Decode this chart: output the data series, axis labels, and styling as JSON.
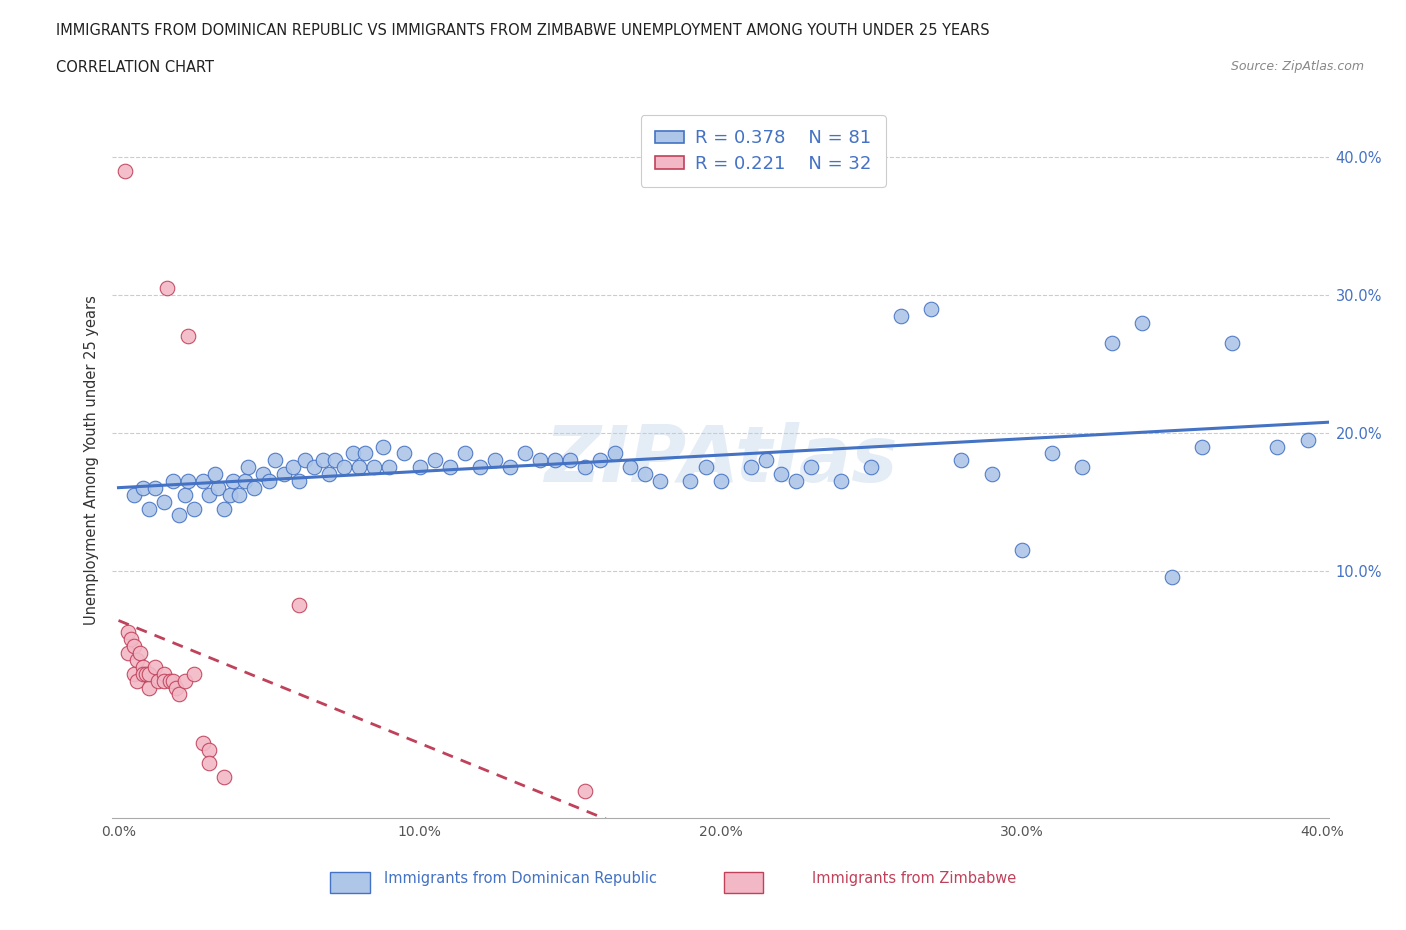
{
  "title_line1": "IMMIGRANTS FROM DOMINICAN REPUBLIC VS IMMIGRANTS FROM ZIMBABWE UNEMPLOYMENT AMONG YOUTH UNDER 25 YEARS",
  "title_line2": "CORRELATION CHART",
  "source_text": "Source: ZipAtlas.com",
  "ylabel": "Unemployment Among Youth under 25 years",
  "xlim": [
    -0.002,
    0.402
  ],
  "ylim": [
    -0.08,
    0.44
  ],
  "xtick_labels": [
    "0.0%",
    "",
    "10.0%",
    "",
    "20.0%",
    "",
    "30.0%",
    "",
    "40.0%"
  ],
  "xtick_vals": [
    0.0,
    0.05,
    0.1,
    0.15,
    0.2,
    0.25,
    0.3,
    0.35,
    0.4
  ],
  "ytick_labels": [
    "10.0%",
    "20.0%",
    "30.0%",
    "40.0%"
  ],
  "ytick_vals": [
    0.1,
    0.2,
    0.3,
    0.4
  ],
  "legend_label1": "Immigrants from Dominican Republic",
  "legend_label2": "Immigrants from Zimbabwe",
  "legend_R1": "R = 0.378",
  "legend_N1": "N = 81",
  "legend_R2": "R = 0.221",
  "legend_N2": "N = 32",
  "color_blue": "#aec6e8",
  "color_pink": "#f2b8c6",
  "line_blue": "#4472c4",
  "line_pink": "#c0415a",
  "blue_x": [
    0.005,
    0.008,
    0.01,
    0.012,
    0.015,
    0.018,
    0.02,
    0.022,
    0.023,
    0.025,
    0.028,
    0.03,
    0.032,
    0.033,
    0.035,
    0.037,
    0.038,
    0.04,
    0.042,
    0.043,
    0.045,
    0.048,
    0.05,
    0.052,
    0.055,
    0.058,
    0.06,
    0.062,
    0.065,
    0.068,
    0.07,
    0.072,
    0.075,
    0.078,
    0.08,
    0.082,
    0.085,
    0.088,
    0.09,
    0.095,
    0.1,
    0.105,
    0.11,
    0.115,
    0.12,
    0.125,
    0.13,
    0.135,
    0.14,
    0.145,
    0.15,
    0.155,
    0.16,
    0.165,
    0.17,
    0.175,
    0.18,
    0.19,
    0.195,
    0.2,
    0.21,
    0.215,
    0.22,
    0.225,
    0.23,
    0.24,
    0.25,
    0.26,
    0.27,
    0.28,
    0.29,
    0.3,
    0.31,
    0.32,
    0.33,
    0.34,
    0.35,
    0.36,
    0.37,
    0.385,
    0.395
  ],
  "blue_y": [
    0.155,
    0.16,
    0.145,
    0.16,
    0.15,
    0.165,
    0.14,
    0.155,
    0.165,
    0.145,
    0.165,
    0.155,
    0.17,
    0.16,
    0.145,
    0.155,
    0.165,
    0.155,
    0.165,
    0.175,
    0.16,
    0.17,
    0.165,
    0.18,
    0.17,
    0.175,
    0.165,
    0.18,
    0.175,
    0.18,
    0.17,
    0.18,
    0.175,
    0.185,
    0.175,
    0.185,
    0.175,
    0.19,
    0.175,
    0.185,
    0.175,
    0.18,
    0.175,
    0.185,
    0.175,
    0.18,
    0.175,
    0.185,
    0.18,
    0.18,
    0.18,
    0.175,
    0.18,
    0.185,
    0.175,
    0.17,
    0.165,
    0.165,
    0.175,
    0.165,
    0.175,
    0.18,
    0.17,
    0.165,
    0.175,
    0.165,
    0.175,
    0.285,
    0.29,
    0.18,
    0.17,
    0.115,
    0.185,
    0.175,
    0.265,
    0.28,
    0.095,
    0.19,
    0.265,
    0.19,
    0.195
  ],
  "pink_x": [
    0.002,
    0.003,
    0.003,
    0.004,
    0.005,
    0.005,
    0.006,
    0.006,
    0.007,
    0.008,
    0.008,
    0.009,
    0.01,
    0.01,
    0.012,
    0.013,
    0.015,
    0.015,
    0.016,
    0.017,
    0.018,
    0.019,
    0.02,
    0.022,
    0.023,
    0.025,
    0.028,
    0.03,
    0.03,
    0.035,
    0.06,
    0.155
  ],
  "pink_y": [
    0.39,
    0.04,
    0.055,
    0.05,
    0.045,
    0.025,
    0.035,
    0.02,
    0.04,
    0.03,
    0.025,
    0.025,
    0.015,
    0.025,
    0.03,
    0.02,
    0.025,
    0.02,
    0.305,
    0.02,
    0.02,
    0.015,
    0.01,
    0.02,
    0.27,
    0.025,
    -0.025,
    -0.03,
    -0.04,
    -0.05,
    0.075,
    -0.06
  ]
}
